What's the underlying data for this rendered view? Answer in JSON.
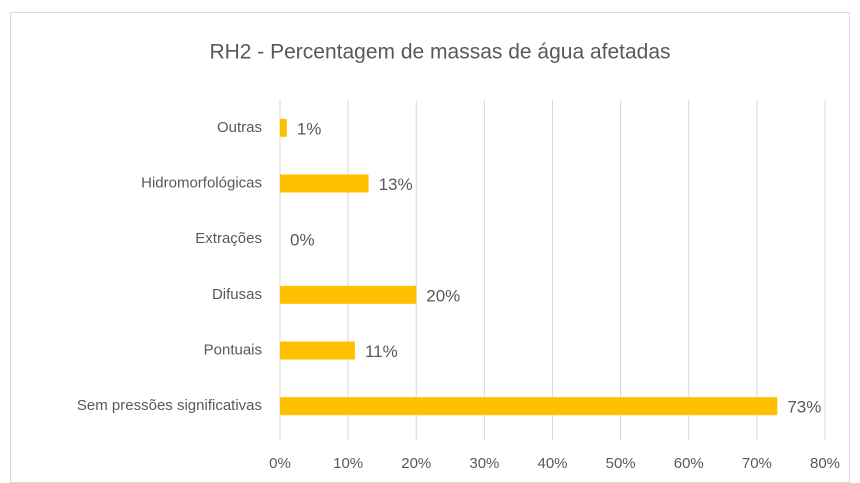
{
  "chart_data": {
    "type": "bar",
    "orientation": "horizontal",
    "title": "RH2 - Percentagem de massas de água afetadas",
    "categories": [
      "Outras",
      "Hidromorfológicas",
      "Extrações",
      "Difusas",
      "Pontuais",
      "Sem pressões significativas"
    ],
    "values": [
      1,
      13,
      0,
      20,
      11,
      73
    ],
    "value_labels": [
      "1%",
      "13%",
      "0%",
      "20%",
      "11%",
      "73%"
    ],
    "color": "#ffc000",
    "xlim": [
      0,
      80
    ],
    "xticks": [
      {
        "value": 0,
        "label": "0%"
      },
      {
        "value": 10,
        "label": "10%"
      },
      {
        "value": 20,
        "label": "20%"
      },
      {
        "value": 30,
        "label": "30%"
      },
      {
        "value": 40,
        "label": "40%"
      },
      {
        "value": 50,
        "label": "50%"
      },
      {
        "value": 60,
        "label": "60%"
      },
      {
        "value": 70,
        "label": "70%"
      },
      {
        "value": 80,
        "label": "80%"
      }
    ],
    "grid": true
  }
}
